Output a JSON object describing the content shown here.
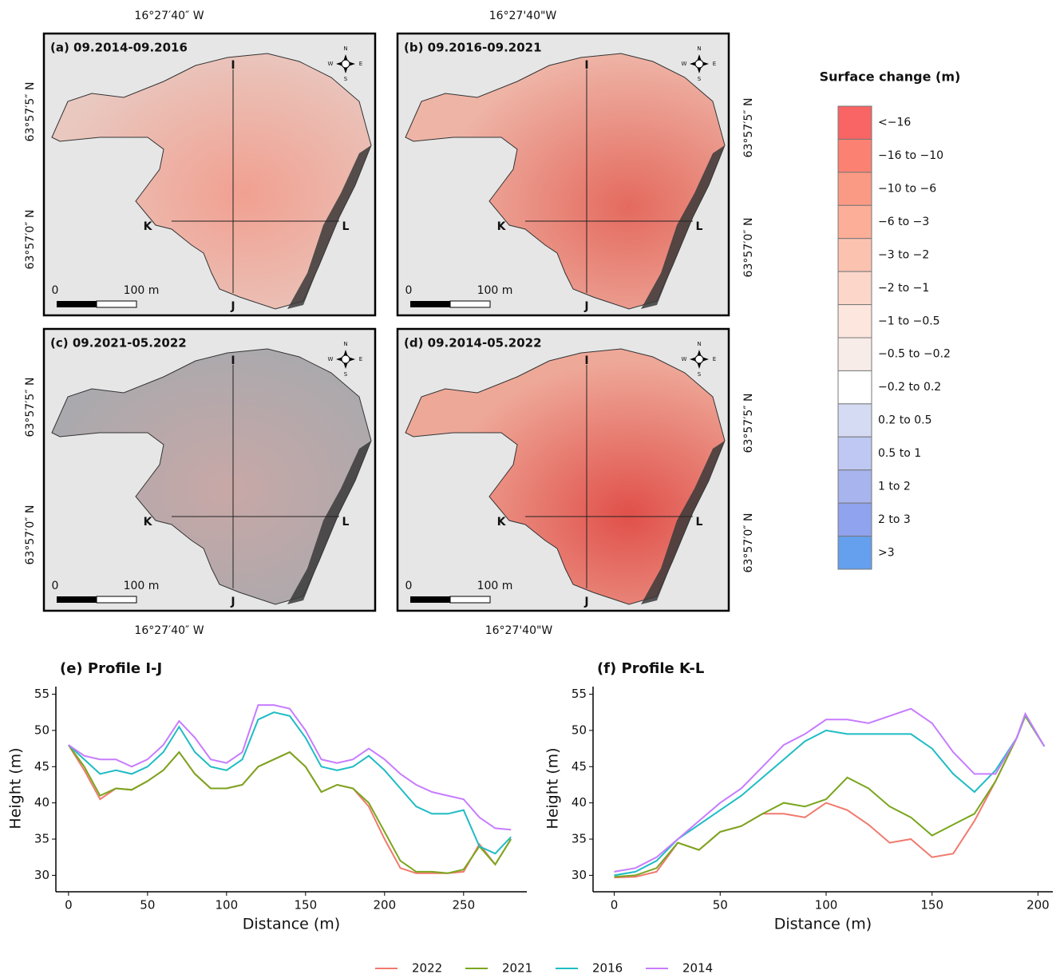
{
  "maps": [
    {
      "label": "(a) 09.2014-09.2016",
      "points": [
        "I",
        "J",
        "K",
        "L"
      ],
      "scale": [
        "0",
        "100 m"
      ]
    },
    {
      "label": "(b) 09.2016-09.2021",
      "points": [
        "I",
        "J",
        "K",
        "L"
      ],
      "scale": [
        "0",
        "100 m"
      ]
    },
    {
      "label": "(c) 09.2021-05.2022",
      "points": [
        "I",
        "J",
        "K",
        "L"
      ],
      "scale": [
        "0",
        "100 m"
      ]
    },
    {
      "label": "(d) 09.2014-05.2022",
      "points": [
        "I",
        "J",
        "K",
        "L"
      ],
      "scale": [
        "0",
        "100 m"
      ]
    }
  ],
  "compass": [
    "N",
    "E",
    "S",
    "W"
  ],
  "coordinates": {
    "top": [
      "16°27′40″ W",
      "16°27'40\"W"
    ],
    "bottom": [
      "16°27′40″ W",
      "16°27'40\"W"
    ],
    "left": [
      "63°57′5″ N",
      "63°57′0″ N",
      "63°57′5″ N",
      "63°57′0″ N"
    ],
    "right": [
      "63°57′5″ N",
      "63°57′0″ N",
      "63°57′5″ N",
      "63°57′0″ N"
    ]
  },
  "legend": {
    "title": "Surface change (m)",
    "items": [
      {
        "label": "<−16",
        "color": "#f96464"
      },
      {
        "label": "−16 to −10",
        "color": "#fb8272"
      },
      {
        "label": "−10 to −6",
        "color": "#fb9a84"
      },
      {
        "label": "−6 to −3",
        "color": "#fcae98"
      },
      {
        "label": "−3 to −2",
        "color": "#fcc2b0"
      },
      {
        "label": "−2 to −1",
        "color": "#fdd6ca"
      },
      {
        "label": "−1 to −0.5",
        "color": "#fde6de"
      },
      {
        "label": "−0.5 to −0.2",
        "color": "#f8ece8"
      },
      {
        "label": "−0.2 to 0.2",
        "color": "#ffffff"
      },
      {
        "label": "0.2 to 0.5",
        "color": "#d6dbf4"
      },
      {
        "label": "0.5 to 1",
        "color": "#bfc8f2"
      },
      {
        "label": "1 to 2",
        "color": "#a7b4ee"
      },
      {
        "label": "2 to 3",
        "color": "#90a3ee"
      },
      {
        "label": ">3",
        "color": "#64a0ee"
      }
    ]
  },
  "chart_data": [
    {
      "type": "line",
      "title": "(e) Profile I-J",
      "x_label": "Distance (m)",
      "y_label": "Height (m)",
      "x": [
        0,
        10,
        20,
        30,
        40,
        50,
        60,
        70,
        80,
        90,
        100,
        110,
        120,
        130,
        140,
        150,
        160,
        170,
        180,
        190,
        200,
        210,
        220,
        230,
        240,
        250,
        260,
        270,
        280
      ],
      "series": [
        {
          "name": "2022",
          "color": "#f07a6e",
          "values": [
            48,
            44.5,
            40.5,
            42,
            41.8,
            43,
            44.5,
            47,
            44,
            42,
            42,
            42.5,
            45,
            46,
            47,
            45,
            41.5,
            42.5,
            42,
            39.5,
            35,
            31,
            30.3,
            30.3,
            30.3,
            30.5,
            34.3,
            31.5,
            35
          ]
        },
        {
          "name": "2021",
          "color": "#7aa61e",
          "values": [
            48,
            45,
            41,
            42,
            41.8,
            43,
            44.5,
            47,
            44,
            42,
            42,
            42.5,
            45,
            46,
            47,
            45,
            41.5,
            42.5,
            42,
            40,
            36,
            32,
            30.5,
            30.5,
            30.3,
            30.8,
            34,
            31.5,
            35
          ]
        },
        {
          "name": "2016",
          "color": "#1fbcc4",
          "values": [
            48,
            46,
            44,
            44.5,
            44,
            45,
            47,
            50.5,
            47,
            45,
            44.5,
            46,
            51.5,
            52.5,
            52,
            49,
            45,
            44.5,
            45,
            46.5,
            44.5,
            42,
            39.5,
            38.5,
            38.5,
            39,
            34,
            33,
            35.3
          ]
        },
        {
          "name": "2014",
          "color": "#c77cff",
          "values": [
            48,
            46.5,
            46,
            46,
            45,
            46,
            48,
            51.3,
            49,
            46,
            45.5,
            47,
            53.5,
            53.5,
            53,
            50,
            46,
            45.5,
            46,
            47.5,
            46,
            44,
            42.5,
            41.5,
            41,
            40.5,
            38,
            36.5,
            36.3
          ]
        }
      ],
      "xlim": [
        -8,
        290
      ],
      "ylim": [
        28.5,
        55.5
      ],
      "xticks": [
        0,
        50,
        100,
        150,
        200,
        250
      ],
      "yticks": [
        30,
        35,
        40,
        45,
        50,
        55
      ]
    },
    {
      "type": "line",
      "title": "(f) Profile K-L",
      "x_label": "Distance (m)",
      "y_label": "Height (m)",
      "x": [
        0,
        10,
        20,
        30,
        40,
        50,
        60,
        70,
        80,
        90,
        100,
        110,
        120,
        130,
        140,
        150,
        160,
        170,
        180,
        190,
        194,
        203
      ],
      "series": [
        {
          "name": "2022",
          "color": "#f07a6e",
          "values": [
            29.7,
            29.8,
            30.5,
            34.5,
            33.5,
            36,
            36.8,
            38.5,
            38.5,
            38,
            40,
            39,
            37,
            34.5,
            35,
            32.5,
            33,
            37.5,
            43,
            49,
            52,
            47.8
          ]
        },
        {
          "name": "2021",
          "color": "#7aa61e",
          "values": [
            29.8,
            30,
            31,
            34.5,
            33.5,
            36,
            36.8,
            38.5,
            40,
            39.5,
            40.5,
            43.5,
            42,
            39.5,
            38,
            35.5,
            37,
            38.5,
            43,
            49,
            52,
            47.8
          ]
        },
        {
          "name": "2016",
          "color": "#1fbcc4",
          "values": [
            30,
            30.5,
            32,
            35,
            37,
            39,
            41,
            43.5,
            46,
            48.5,
            50,
            49.5,
            49.5,
            49.5,
            49.5,
            47.5,
            44,
            41.5,
            44.5,
            49,
            52.2,
            47.8
          ]
        },
        {
          "name": "2014",
          "color": "#c77cff",
          "values": [
            30.5,
            31,
            32.5,
            35,
            37.5,
            40,
            42,
            45,
            48,
            49.5,
            51.5,
            51.5,
            51,
            52,
            53,
            51,
            47,
            44,
            44,
            49,
            52.3,
            47.8
          ]
        }
      ],
      "xlim": [
        -10,
        207
      ],
      "ylim": [
        28.5,
        55.5
      ],
      "xticks": [
        0,
        50,
        100,
        150,
        200
      ],
      "yticks": [
        30,
        35,
        40,
        45,
        50,
        55
      ]
    }
  ]
}
